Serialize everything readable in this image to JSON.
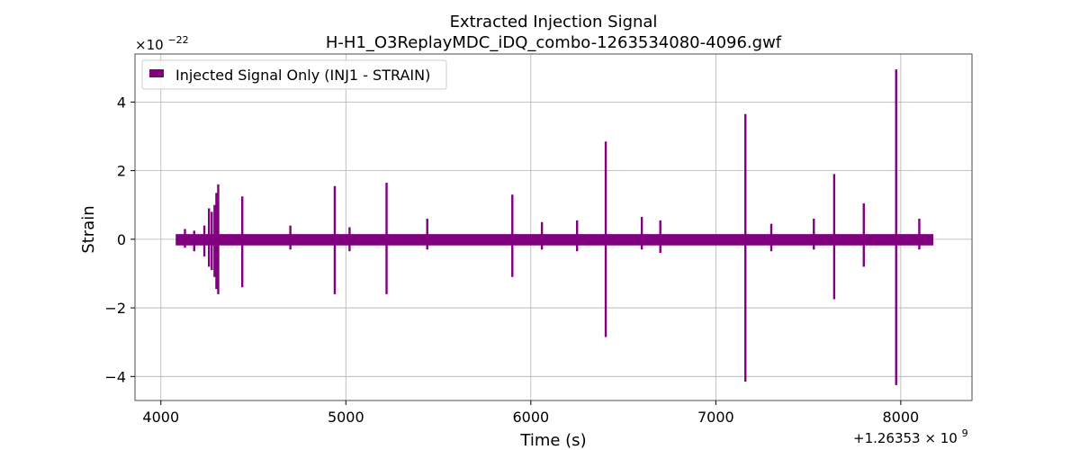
{
  "chart_data": {
    "type": "line",
    "title": "Extracted Injection Signal",
    "subtitle": "H-H1_O3ReplayMDC_iDQ_combo-1263534080-4096.gwf",
    "xlabel": "Time (s)",
    "ylabel": "Strain",
    "y_exponent_label": "×10",
    "y_exponent_power": "−22",
    "x_offset_label": "+1.26353 × 10",
    "x_offset_power": "9",
    "xlim": [
      3860,
      8385
    ],
    "ylim": [
      -4.7,
      5.4
    ],
    "xticks": [
      4000,
      5000,
      6000,
      7000,
      8000
    ],
    "xtick_labels": [
      "4000",
      "5000",
      "6000",
      "7000",
      "8000"
    ],
    "yticks": [
      -4,
      -2,
      0,
      2,
      4
    ],
    "ytick_labels": [
      "−4",
      "−2",
      "0",
      "2",
      "4"
    ],
    "grid": true,
    "legend_position": "top-left",
    "series": [
      {
        "name": "Injected Signal Only (INJ1 - STRAIN)",
        "color": "#800080",
        "x_range": [
          4080,
          8176
        ],
        "noise_band": [
          -0.18,
          0.15
        ],
        "spikes": [
          {
            "x": 4130,
            "min": -0.25,
            "max": 0.3
          },
          {
            "x": 4180,
            "min": -0.35,
            "max": 0.25
          },
          {
            "x": 4235,
            "min": -0.5,
            "max": 0.4
          },
          {
            "x": 4260,
            "min": -0.8,
            "max": 0.9
          },
          {
            "x": 4275,
            "min": -0.9,
            "max": 0.8
          },
          {
            "x": 4290,
            "min": -1.1,
            "max": 1.0
          },
          {
            "x": 4300,
            "min": -1.45,
            "max": 1.35
          },
          {
            "x": 4310,
            "min": -1.6,
            "max": 1.6
          },
          {
            "x": 4440,
            "min": -1.4,
            "max": 1.25
          },
          {
            "x": 4700,
            "min": -0.3,
            "max": 0.4
          },
          {
            "x": 4940,
            "min": -1.6,
            "max": 1.55
          },
          {
            "x": 5020,
            "min": -0.35,
            "max": 0.35
          },
          {
            "x": 5220,
            "min": -1.6,
            "max": 1.65
          },
          {
            "x": 5440,
            "min": -0.3,
            "max": 0.6
          },
          {
            "x": 5900,
            "min": -1.1,
            "max": 1.3
          },
          {
            "x": 6060,
            "min": -0.3,
            "max": 0.5
          },
          {
            "x": 6250,
            "min": -0.35,
            "max": 0.55
          },
          {
            "x": 6405,
            "min": -2.85,
            "max": 2.85
          },
          {
            "x": 6600,
            "min": -0.3,
            "max": 0.65
          },
          {
            "x": 6700,
            "min": -0.4,
            "max": 0.55
          },
          {
            "x": 7160,
            "min": -4.15,
            "max": 3.65
          },
          {
            "x": 7300,
            "min": -0.35,
            "max": 0.45
          },
          {
            "x": 7530,
            "min": -0.3,
            "max": 0.6
          },
          {
            "x": 7640,
            "min": -1.75,
            "max": 1.9
          },
          {
            "x": 7800,
            "min": -0.8,
            "max": 1.05
          },
          {
            "x": 7975,
            "min": -4.25,
            "max": 4.95
          },
          {
            "x": 8100,
            "min": -0.3,
            "max": 0.6
          }
        ]
      }
    ]
  }
}
